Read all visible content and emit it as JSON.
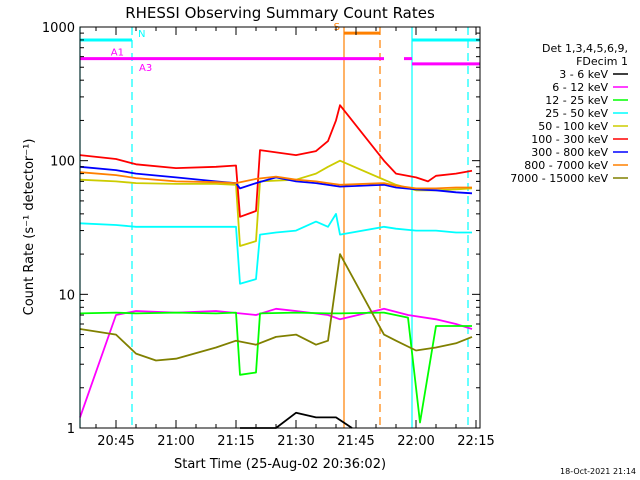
{
  "chart_data": {
    "type": "line",
    "title": "RHESSI Observing Summary Count Rates",
    "xlabel": "Start Time (25-Aug-02 20:36:02)",
    "ylabel": "Count Rate (s⁻¹ detector⁻¹)",
    "y_scale": "log",
    "ylim": [
      1,
      1000
    ],
    "xlim": [
      "20:36",
      "22:16"
    ],
    "x_ticks": [
      "20:45",
      "21:00",
      "21:15",
      "21:30",
      "21:45",
      "22:00",
      "22:15"
    ],
    "y_ticks": [
      "1",
      "10",
      "100",
      "1000"
    ],
    "legend": {
      "position": "right",
      "header": [
        "Det 1,3,4,5,6,9,",
        "FDecim 1"
      ]
    },
    "timestamp": "18-Oct-2021 21:14",
    "flags": [
      {
        "label": "N",
        "color": "#00ffff",
        "segments": [
          [
            "20:36",
            "20:49"
          ],
          [
            "21:59",
            "22:16"
          ]
        ],
        "level": 800
      },
      {
        "label": "A1",
        "color": "#ff00ff",
        "segments": [
          [
            "20:36",
            "21:52"
          ],
          [
            "21:57",
            "21:59"
          ]
        ],
        "level": 580
      },
      {
        "label": "A3",
        "color": "#ff00ff",
        "segments": [
          [
            "21:59",
            "22:16"
          ]
        ],
        "level": 530
      },
      {
        "label": "S",
        "color": "#ff8000",
        "segments": [
          [
            "21:42",
            "21:51"
          ]
        ],
        "level": 900
      }
    ],
    "vlines": [
      {
        "time": "20:36",
        "color": "#00ffff",
        "style": "solid"
      },
      {
        "time": "20:49",
        "color": "#00ffff",
        "style": "dashed"
      },
      {
        "time": "21:42",
        "color": "#ff8000",
        "style": "solid"
      },
      {
        "time": "21:51",
        "color": "#ff8000",
        "style": "dashed"
      },
      {
        "time": "21:59",
        "color": "#00ffff",
        "style": "solid"
      },
      {
        "time": "22:13",
        "color": "#00ffff",
        "style": "dashed"
      }
    ],
    "series": [
      {
        "name": "3 - 6 keV",
        "color": "#000000",
        "x": [
          "21:16",
          "21:20",
          "21:25",
          "21:30",
          "21:35",
          "21:40",
          "21:44"
        ],
        "values": [
          1.0,
          1.0,
          1.0,
          1.3,
          1.2,
          1.2,
          1.0
        ]
      },
      {
        "name": "6 - 12 keV",
        "color": "#ff00ff",
        "x": [
          "20:36",
          "20:45",
          "20:50",
          "21:00",
          "21:10",
          "21:20",
          "21:25",
          "21:30",
          "21:38",
          "21:41",
          "21:52",
          "21:58",
          "22:05",
          "22:10",
          "22:14"
        ],
        "values": [
          1.2,
          7.0,
          7.5,
          7.3,
          7.5,
          7.0,
          7.8,
          7.5,
          7.0,
          6.5,
          7.8,
          7.0,
          6.5,
          6.0,
          5.5
        ]
      },
      {
        "name": "12 - 25 keV",
        "color": "#00ff00",
        "x": [
          "20:36",
          "20:45",
          "20:50",
          "21:00",
          "21:10",
          "21:15",
          "21:16",
          "21:20",
          "21:21",
          "21:30",
          "21:38",
          "21:41",
          "21:52",
          "21:58",
          "22:01",
          "22:05",
          "22:14"
        ],
        "values": [
          7.2,
          7.3,
          7.2,
          7.3,
          7.2,
          7.3,
          2.5,
          2.6,
          7.2,
          7.3,
          7.2,
          7.2,
          7.3,
          6.7,
          1.1,
          5.8,
          5.8
        ]
      },
      {
        "name": "25 - 50 keV",
        "color": "#00ffff",
        "x": [
          "20:36",
          "20:45",
          "20:50",
          "21:00",
          "21:10",
          "21:15",
          "21:16",
          "21:20",
          "21:21",
          "21:25",
          "21:30",
          "21:35",
          "21:38",
          "21:40",
          "21:41",
          "21:52",
          "21:55",
          "22:00",
          "22:05",
          "22:10",
          "22:14"
        ],
        "values": [
          34,
          33,
          32,
          32,
          32,
          32,
          12,
          13,
          28,
          29,
          30,
          35,
          32,
          40,
          28,
          32,
          31,
          30,
          30,
          29,
          29
        ]
      },
      {
        "name": "50 - 100 keV",
        "color": "#cccc00",
        "x": [
          "20:36",
          "20:45",
          "20:50",
          "21:00",
          "21:10",
          "21:15",
          "21:16",
          "21:20",
          "21:21",
          "21:30",
          "21:35",
          "21:38",
          "21:41",
          "21:52",
          "21:55",
          "22:00",
          "22:05",
          "22:10",
          "22:14"
        ],
        "values": [
          72,
          70,
          68,
          67,
          67,
          66,
          23,
          25,
          70,
          72,
          80,
          90,
          100,
          72,
          66,
          60,
          60,
          61,
          62
        ]
      },
      {
        "name": "100 - 300 keV",
        "color": "#ff0000",
        "x": [
          "20:36",
          "20:45",
          "20:50",
          "21:00",
          "21:10",
          "21:15",
          "21:16",
          "21:20",
          "21:21",
          "21:30",
          "21:35",
          "21:38",
          "21:40",
          "21:41",
          "21:52",
          "21:55",
          "22:00",
          "22:03",
          "22:05",
          "22:10",
          "22:14"
        ],
        "values": [
          110,
          103,
          94,
          88,
          90,
          92,
          38,
          42,
          120,
          110,
          118,
          140,
          200,
          260,
          100,
          80,
          75,
          70,
          77,
          80,
          84
        ]
      },
      {
        "name": "300 - 800 keV",
        "color": "#0000ff",
        "x": [
          "20:36",
          "20:45",
          "20:50",
          "21:00",
          "21:10",
          "21:15",
          "21:16",
          "21:20",
          "21:25",
          "21:30",
          "21:35",
          "21:38",
          "21:41",
          "21:52",
          "21:55",
          "22:00",
          "22:05",
          "22:10",
          "22:14"
        ],
        "values": [
          90,
          85,
          80,
          75,
          70,
          68,
          62,
          68,
          75,
          70,
          68,
          66,
          64,
          66,
          63,
          61,
          60,
          58,
          57
        ]
      },
      {
        "name": "800 - 7000 keV",
        "color": "#ff8000",
        "x": [
          "20:36",
          "20:45",
          "20:50",
          "21:00",
          "21:10",
          "21:15",
          "21:20",
          "21:25",
          "21:30",
          "21:35",
          "21:38",
          "21:41",
          "21:52",
          "21:55",
          "22:00",
          "22:05",
          "22:10",
          "22:14"
        ],
        "values": [
          82,
          78,
          74,
          70,
          69,
          68,
          73,
          76,
          72,
          70,
          68,
          66,
          68,
          65,
          62,
          62,
          63,
          63
        ]
      },
      {
        "name": "7000 - 15000 keV",
        "color": "#808000",
        "x": [
          "20:36",
          "20:45",
          "20:50",
          "20:55",
          "21:00",
          "21:10",
          "21:15",
          "21:20",
          "21:25",
          "21:30",
          "21:35",
          "21:38",
          "21:41",
          "21:52",
          "21:55",
          "22:00",
          "22:05",
          "22:10",
          "22:14"
        ],
        "values": [
          5.5,
          5.0,
          3.6,
          3.2,
          3.3,
          4.0,
          4.5,
          4.2,
          4.8,
          5.0,
          4.2,
          4.5,
          20,
          5.0,
          4.5,
          3.8,
          4.0,
          4.3,
          4.8
        ]
      }
    ]
  }
}
